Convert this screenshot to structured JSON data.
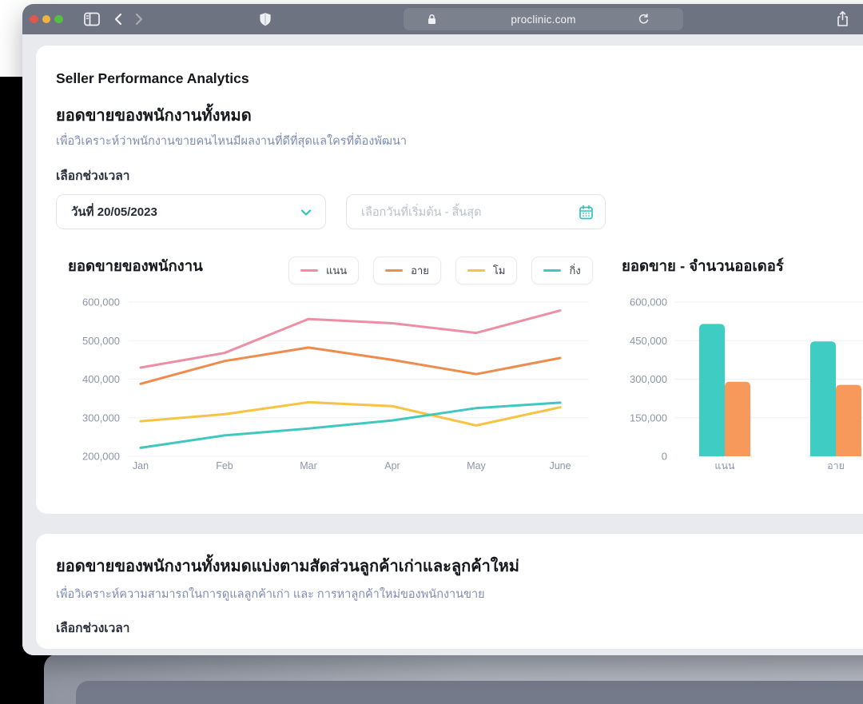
{
  "browser": {
    "url": "proclinic.com",
    "icons": [
      "sidebar",
      "back",
      "forward",
      "shield",
      "lock",
      "reload",
      "share"
    ]
  },
  "page": {
    "title": "Seller Performance Analytics",
    "section1": {
      "heading": "ยอดขายของพนักงานทั้งหมด",
      "description": "เพื่อวิเคราะห์ว่าพนักงานขายคนไหนมีผลงานที่ดีที่สุดแลใครที่ต้องพัฒนา",
      "time_label": "เลือกช่วงเวลา",
      "date_select_value": "วันที่ 20/05/2023",
      "date_range_placeholder": "เลือกวันที่เริ่มต้น - สิ้นสุด"
    },
    "section2": {
      "heading": "ยอดขายของพนักงานทั้งหมดแบ่งตามสัดส่วนลูกค้าเก่าและลูกค้าใหม่",
      "description": "เพื่อวิเคราะห์ความสามารถในการดูแลลูกค้าเก่า และ การหาลูกค้าใหม่ของพนักงานขาย",
      "time_label": "เลือกช่วงเวลา"
    }
  },
  "colors": {
    "accent_teal": "#2ec4bd",
    "axis_label": "#8d95a9",
    "gridline": "#f0f1f4",
    "titlebar": "#6d7380",
    "page_bg": "#e9eaee"
  },
  "chart_data": [
    {
      "type": "line",
      "title": "ยอดขายของพนักงาน",
      "x": [
        "Jan",
        "Feb",
        "Mar",
        "Apr",
        "May",
        "June"
      ],
      "series": [
        {
          "name": "แนน",
          "color": "#ec8fa4",
          "values": [
            430000,
            468000,
            556000,
            545000,
            520000,
            578000
          ]
        },
        {
          "name": "อาย",
          "color": "#ef8b4d",
          "values": [
            388000,
            447000,
            482000,
            450000,
            413000,
            455000
          ]
        },
        {
          "name": "โม",
          "color": "#f6c343",
          "values": [
            291000,
            309000,
            340000,
            330000,
            280000,
            327000
          ]
        },
        {
          "name": "กิ่ง",
          "color": "#41c7bf",
          "values": [
            222000,
            254000,
            272000,
            293000,
            325000,
            339000
          ]
        }
      ],
      "ylim": [
        200000,
        600000
      ],
      "yticks": [
        200000,
        300000,
        400000,
        500000,
        600000
      ],
      "grid": true,
      "legend_position": "top-right"
    },
    {
      "type": "bar",
      "title": "ยอดขาย - จำนวนออเดอร์",
      "categories": [
        "แนน",
        "อาย"
      ],
      "series": [
        {
          "name": "ยอดขาย",
          "color": "#3fccc3",
          "values": [
            515000,
            447000
          ]
        },
        {
          "name": "จำนวนออเดอร์",
          "color": "#f8995c",
          "values": [
            290000,
            278000
          ]
        }
      ],
      "ylim": [
        0,
        600000
      ],
      "yticks": [
        0,
        150000,
        300000,
        450000,
        600000
      ],
      "grid": true
    }
  ]
}
